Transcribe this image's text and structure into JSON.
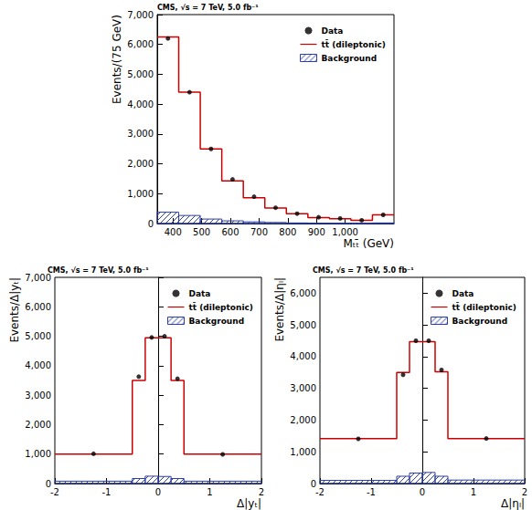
{
  "chart_data": [
    {
      "type": "histogram",
      "title": "CMS, √s = 7 TeV, 5.0 fb⁻¹",
      "x_label": "Mₜₜ̄ (GeV)",
      "y_label": "Events/(75 GeV)",
      "bins": [
        345,
        420,
        495,
        570,
        645,
        720,
        795,
        870,
        945,
        1020,
        1095,
        1170
      ],
      "xlim": [
        345,
        1170
      ],
      "xticks": [
        400,
        500,
        600,
        700,
        800,
        900,
        1000
      ],
      "ylim": [
        0,
        7000
      ],
      "yticks": [
        0,
        1000,
        2000,
        3000,
        4000,
        5000,
        6000,
        7000
      ],
      "grid": false,
      "legend": "upper right",
      "series": [
        {
          "name": "Data",
          "type": "scatter",
          "marker": "circle",
          "color": "#000000",
          "values": [
            6200,
            4400,
            2500,
            1480,
            900,
            530,
            330,
            210,
            170,
            110,
            290
          ]
        },
        {
          "name": "tt̄ (dileptonic)",
          "type": "line",
          "line_style": "step",
          "color": "#cc0000",
          "values": [
            6250,
            4400,
            2500,
            1430,
            860,
            520,
            330,
            200,
            160,
            110,
            290
          ]
        },
        {
          "name": "Background",
          "type": "bar",
          "color": "#2b3fa6",
          "values": [
            380,
            270,
            150,
            90,
            55,
            35,
            20,
            15,
            10,
            8,
            20
          ]
        }
      ]
    },
    {
      "type": "histogram",
      "title": "CMS, √s = 7 TeV, 5.0 fb⁻¹",
      "x_label": "Δ|yₜ|",
      "y_label": "Events/Δ|yₜ|",
      "bins": [
        -2,
        -0.5,
        -0.25,
        0,
        0.25,
        0.5,
        2
      ],
      "xlim": [
        -2,
        2
      ],
      "xticks": [
        -2,
        -1,
        0,
        1,
        2
      ],
      "ylim": [
        0,
        7000
      ],
      "yticks": [
        0,
        1000,
        2000,
        3000,
        4000,
        5000,
        6000,
        7000
      ],
      "grid": false,
      "legend": "upper right",
      "series": [
        {
          "name": "Data",
          "type": "scatter",
          "marker": "circle",
          "color": "#000000",
          "values": [
            1010,
            3630,
            4960,
            5000,
            3560,
            990
          ]
        },
        {
          "name": "tt̄ (dileptonic)",
          "type": "line",
          "line_style": "step",
          "color": "#cc0000",
          "values": [
            1000,
            3500,
            4950,
            4950,
            3500,
            1000
          ]
        },
        {
          "name": "Background",
          "type": "bar",
          "color": "#2b3fa6",
          "values": [
            80,
            170,
            250,
            240,
            170,
            80
          ]
        }
      ]
    },
    {
      "type": "histogram",
      "title": "CMS, √s = 7 TeV, 5.0 fb⁻¹",
      "x_label": "Δ|ηₗ|",
      "y_label": "Events/Δ|ηₗ|",
      "bins": [
        -2,
        -0.5,
        -0.25,
        0,
        0.25,
        0.5,
        2
      ],
      "xlim": [
        -2,
        2
      ],
      "xticks": [
        -2,
        -1,
        0,
        1,
        2
      ],
      "ylim": [
        0,
        6500
      ],
      "yticks": [
        0,
        1000,
        2000,
        3000,
        4000,
        5000,
        6000
      ],
      "grid": false,
      "legend": "upper right",
      "series": [
        {
          "name": "Data",
          "type": "scatter",
          "marker": "circle",
          "color": "#000000",
          "values": [
            1410,
            3430,
            4500,
            4500,
            3580,
            1420
          ]
        },
        {
          "name": "tt̄ (dileptonic)",
          "type": "line",
          "line_style": "step",
          "color": "#cc0000",
          "values": [
            1420,
            3500,
            4470,
            4470,
            3520,
            1420
          ]
        },
        {
          "name": "Background",
          "type": "bar",
          "color": "#2b3fa6",
          "values": [
            100,
            230,
            330,
            350,
            230,
            110
          ]
        }
      ]
    }
  ]
}
